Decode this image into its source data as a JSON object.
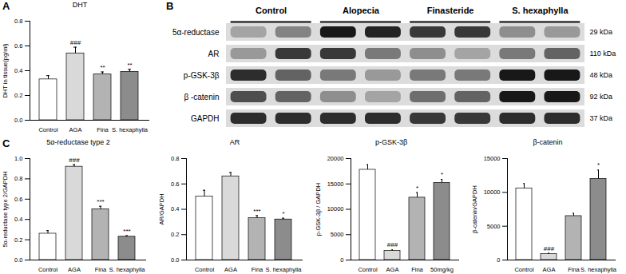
{
  "chart_data": [
    {
      "panel": "A",
      "type": "bar",
      "title": "DHT",
      "y_label": "DHT in tissue(pg/ml)",
      "categories": [
        "Control",
        "AGA",
        "Fina",
        "S. hexaphylla"
      ],
      "values": [
        0.33,
        0.54,
        0.37,
        0.39
      ],
      "errors": [
        0.03,
        0.05,
        0.02,
        0.02
      ],
      "annotations": [
        null,
        "###",
        "**",
        "**"
      ],
      "colors": [
        "#ffffff",
        "#d9d9d9",
        "#b3b3b3",
        "#8c8c8c"
      ],
      "ylim": [
        0,
        0.8
      ],
      "yticks": [
        {
          "value": 0,
          "label": "0.0"
        },
        0.2,
        0.4,
        0.6,
        0.8
      ]
    },
    {
      "panel": "B",
      "type": "blot",
      "groups": [
        "Control",
        "Alopecia",
        "Finasteride",
        "S. hexaphylla"
      ],
      "rows": [
        {
          "label": "5α-reductase",
          "size": "29 kDa",
          "values": [
            0.3,
            0.45,
            0.95,
            0.9,
            0.8,
            0.8,
            0.4,
            0.35
          ]
        },
        {
          "label": "AR",
          "size": "110 kDa",
          "values": [
            0.35,
            0.8,
            0.8,
            0.5,
            0.4,
            0.3,
            0.5,
            0.6
          ]
        },
        {
          "label": "p-GSK-3β",
          "size": "48 kDa",
          "values": [
            0.85,
            0.6,
            0.5,
            0.35,
            0.5,
            0.5,
            0.95,
            0.95
          ]
        },
        {
          "label": "β -catenin",
          "size": "92 kDa",
          "values": [
            0.7,
            0.6,
            0.4,
            0.3,
            0.55,
            0.6,
            0.95,
            0.95
          ]
        },
        {
          "label": "GAPDH",
          "size": "37 kDa",
          "values": [
            0.85,
            0.85,
            0.85,
            0.85,
            0.8,
            0.8,
            0.85,
            0.85
          ]
        }
      ],
      "zlim": [
        0,
        1
      ]
    },
    {
      "panel": "C",
      "type": "bar",
      "title": "5α-reductase type 2",
      "y_label": "5α-reductase type 2/GAPDH",
      "categories": [
        "Control",
        "AGA",
        "Fina",
        "S. hexaphylla"
      ],
      "values": [
        0.26,
        0.92,
        0.5,
        0.23
      ],
      "errors": [
        0.03,
        0.02,
        0.03,
        0.01
      ],
      "annotations": [
        null,
        "###",
        "***",
        "***"
      ],
      "colors": [
        "#ffffff",
        "#d9d9d9",
        "#b3b3b3",
        "#8c8c8c"
      ],
      "ylim": [
        0,
        1
      ],
      "yticks": [
        {
          "value": 0,
          "label": "0.0"
        },
        0.2,
        0.4,
        0.6,
        0.8,
        {
          "value": 1,
          "label": "1.0"
        }
      ]
    },
    {
      "type": "bar",
      "title": "AR",
      "y_label": "AR/GAPDH",
      "categories": [
        "Control",
        "AGA",
        "Fina",
        "S. hexaphylla"
      ],
      "values": [
        0.5,
        0.66,
        0.33,
        0.32
      ],
      "errors": [
        0.05,
        0.03,
        0.02,
        0.01
      ],
      "annotations": [
        null,
        null,
        "***",
        "*"
      ],
      "colors": [
        "#ffffff",
        "#d9d9d9",
        "#b3b3b3",
        "#8c8c8c"
      ],
      "ylim": [
        0,
        0.8
      ],
      "yticks": [
        {
          "value": 0,
          "label": "0.0"
        },
        0.2,
        0.4,
        0.6,
        0.8
      ]
    },
    {
      "type": "bar",
      "title": "p-GSK-3β",
      "y_label": "p-GSK-3β / GAPDH",
      "categories": [
        "Control",
        "AGA",
        "Fina",
        "50mg/kg"
      ],
      "values": [
        17800,
        1800,
        12300,
        15200
      ],
      "errors": [
        1000,
        200,
        1000,
        700
      ],
      "annotations": [
        null,
        "###",
        "*",
        "*"
      ],
      "colors": [
        "#ffffff",
        "#d9d9d9",
        "#b3b3b3",
        "#8c8c8c"
      ],
      "ylim": [
        0,
        20000
      ],
      "yticks": [
        0,
        5000,
        10000,
        15000,
        20000
      ]
    },
    {
      "type": "bar",
      "title": "β-catenin",
      "y_label": "β-catenin/GAPDH",
      "categories": [
        "Control",
        "AGA",
        "Fina",
        "S. hexaphylla"
      ],
      "values": [
        10600,
        900,
        6500,
        12000
      ],
      "errors": [
        700,
        100,
        400,
        1300
      ],
      "annotations": [
        null,
        "###",
        null,
        "*"
      ],
      "colors": [
        "#ffffff",
        "#d9d9d9",
        "#b3b3b3",
        "#8c8c8c"
      ],
      "ylim": [
        0,
        15000
      ],
      "yticks": [
        0,
        5000,
        10000,
        15000
      ]
    }
  ]
}
